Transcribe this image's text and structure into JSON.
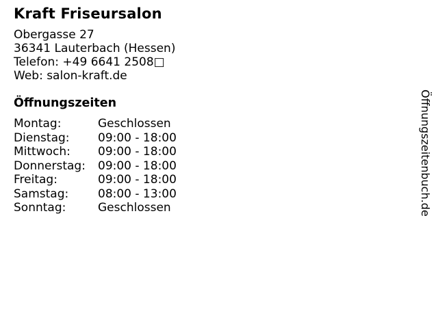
{
  "business": {
    "name": "Kraft Friseursalon",
    "address_line1": "Obergasse 27",
    "address_line2": "36341 Lauterbach (Hessen)",
    "phone_line": "Telefon: +49 6641 2508□",
    "web_line": "Web: salon-kraft.de"
  },
  "hours": {
    "heading": "Öffnungszeiten",
    "rows": [
      {
        "day": "Montag:",
        "value": "Geschlossen"
      },
      {
        "day": "Dienstag:",
        "value": "09:00 - 18:00"
      },
      {
        "day": "Mittwoch:",
        "value": "09:00 - 18:00"
      },
      {
        "day": "Donnerstag:",
        "value": "09:00 - 18:00"
      },
      {
        "day": "Freitag:",
        "value": "09:00 - 18:00"
      },
      {
        "day": "Samstag:",
        "value": "08:00 - 13:00"
      },
      {
        "day": "Sonntag:",
        "value": "Geschlossen"
      }
    ]
  },
  "watermark": {
    "text": "Öffnungszeitenbuch.de"
  },
  "colors": {
    "text": "#000000",
    "background": "#ffffff"
  }
}
